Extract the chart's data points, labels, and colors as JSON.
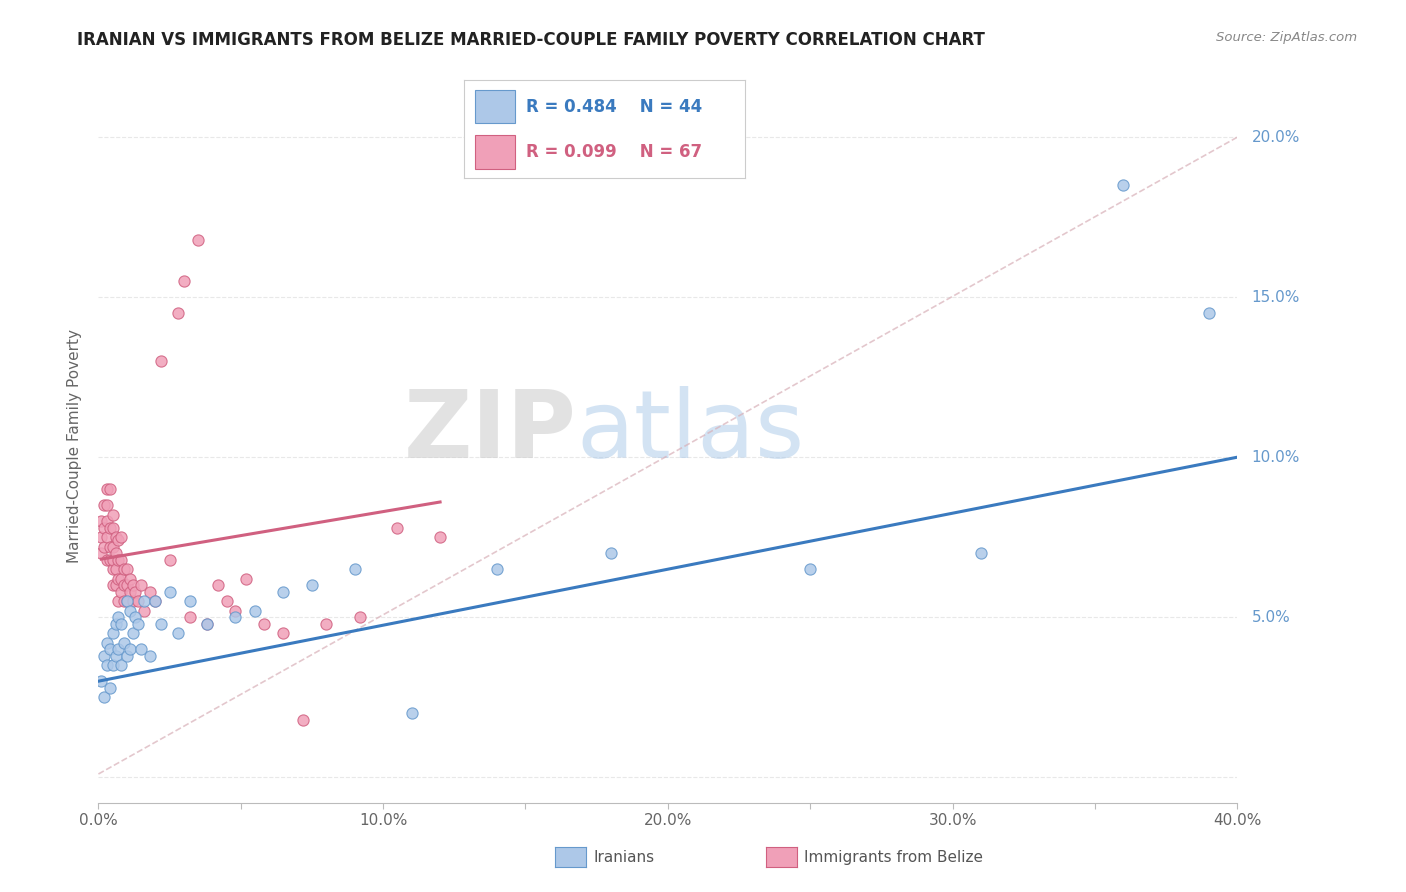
{
  "title": "IRANIAN VS IMMIGRANTS FROM BELIZE MARRIED-COUPLE FAMILY POVERTY CORRELATION CHART",
  "source": "Source: ZipAtlas.com",
  "ylabel": "Married-Couple Family Poverty",
  "watermark_zip": "ZIP",
  "watermark_atlas": "atlas",
  "xmin": 0.0,
  "xmax": 0.4,
  "ymin": -0.008,
  "ymax": 0.215,
  "xticks": [
    0.0,
    0.05,
    0.1,
    0.15,
    0.2,
    0.25,
    0.3,
    0.35,
    0.4
  ],
  "xtick_labels": [
    "0.0%",
    "",
    "10.0%",
    "",
    "20.0%",
    "",
    "30.0%",
    "",
    "40.0%"
  ],
  "yticks": [
    0.0,
    0.05,
    0.1,
    0.15,
    0.2
  ],
  "ytick_labels_right": [
    "",
    "5.0%",
    "10.0%",
    "15.0%",
    "20.0%"
  ],
  "series1_color": "#adc8e8",
  "series1_edge": "#6699cc",
  "series2_color": "#f0a0b8",
  "series2_edge": "#d06080",
  "series1_label": "Iranians",
  "series2_label": "Immigrants from Belize",
  "legend_r1": "R = 0.484",
  "legend_n1": "N = 44",
  "legend_r2": "R = 0.099",
  "legend_n2": "N = 67",
  "trendline1_color": "#3a7abf",
  "trendline2_color": "#d06080",
  "trendline_dashed_color": "#d0a0a8",
  "iranians_x": [
    0.001,
    0.002,
    0.002,
    0.003,
    0.003,
    0.004,
    0.004,
    0.005,
    0.005,
    0.006,
    0.006,
    0.007,
    0.007,
    0.008,
    0.008,
    0.009,
    0.01,
    0.01,
    0.011,
    0.011,
    0.012,
    0.013,
    0.014,
    0.015,
    0.016,
    0.018,
    0.02,
    0.022,
    0.025,
    0.028,
    0.032,
    0.038,
    0.048,
    0.055,
    0.065,
    0.075,
    0.09,
    0.11,
    0.14,
    0.18,
    0.25,
    0.31,
    0.36,
    0.39
  ],
  "iranians_y": [
    0.03,
    0.038,
    0.025,
    0.035,
    0.042,
    0.028,
    0.04,
    0.035,
    0.045,
    0.038,
    0.048,
    0.04,
    0.05,
    0.035,
    0.048,
    0.042,
    0.038,
    0.055,
    0.04,
    0.052,
    0.045,
    0.05,
    0.048,
    0.04,
    0.055,
    0.038,
    0.055,
    0.048,
    0.058,
    0.045,
    0.055,
    0.048,
    0.05,
    0.052,
    0.058,
    0.06,
    0.065,
    0.02,
    0.065,
    0.07,
    0.065,
    0.07,
    0.185,
    0.145
  ],
  "belize_x": [
    0.001,
    0.001,
    0.001,
    0.002,
    0.002,
    0.002,
    0.003,
    0.003,
    0.003,
    0.003,
    0.003,
    0.004,
    0.004,
    0.004,
    0.004,
    0.005,
    0.005,
    0.005,
    0.005,
    0.005,
    0.005,
    0.006,
    0.006,
    0.006,
    0.006,
    0.007,
    0.007,
    0.007,
    0.007,
    0.008,
    0.008,
    0.008,
    0.008,
    0.009,
    0.009,
    0.009,
    0.01,
    0.01,
    0.01,
    0.011,
    0.011,
    0.012,
    0.012,
    0.013,
    0.014,
    0.015,
    0.016,
    0.018,
    0.02,
    0.022,
    0.025,
    0.028,
    0.03,
    0.032,
    0.035,
    0.038,
    0.042,
    0.045,
    0.048,
    0.052,
    0.058,
    0.065,
    0.072,
    0.08,
    0.092,
    0.105,
    0.12
  ],
  "belize_y": [
    0.07,
    0.075,
    0.08,
    0.072,
    0.078,
    0.085,
    0.068,
    0.075,
    0.08,
    0.085,
    0.09,
    0.068,
    0.072,
    0.078,
    0.09,
    0.06,
    0.065,
    0.068,
    0.072,
    0.078,
    0.082,
    0.06,
    0.065,
    0.07,
    0.075,
    0.055,
    0.062,
    0.068,
    0.074,
    0.058,
    0.062,
    0.068,
    0.075,
    0.055,
    0.06,
    0.065,
    0.055,
    0.06,
    0.065,
    0.058,
    0.062,
    0.055,
    0.06,
    0.058,
    0.055,
    0.06,
    0.052,
    0.058,
    0.055,
    0.13,
    0.068,
    0.145,
    0.155,
    0.05,
    0.168,
    0.048,
    0.06,
    0.055,
    0.052,
    0.062,
    0.048,
    0.045,
    0.018,
    0.048,
    0.05,
    0.078,
    0.075
  ]
}
